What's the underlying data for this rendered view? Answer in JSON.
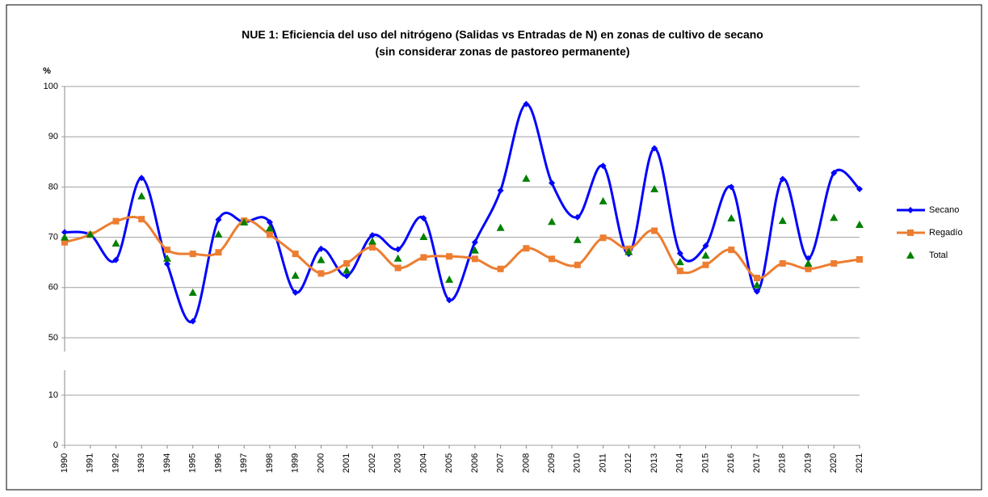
{
  "chart_data": {
    "type": "line",
    "title": "NUE 1: Eficiencia del uso del nitrógeno (Salidas vs Entradas de N) en zonas de cultivo de secano",
    "subtitle": "(sin considerar zonas de pastoreo permanente)",
    "y_label": "%",
    "categories": [
      "1990",
      "1991",
      "1992",
      "1993",
      "1994",
      "1995",
      "1996",
      "1997",
      "1998",
      "1999",
      "2000",
      "2001",
      "2002",
      "2003",
      "2004",
      "2005",
      "2006",
      "2007",
      "2008",
      "2009",
      "2010",
      "2011",
      "2012",
      "2013",
      "2014",
      "2015",
      "2016",
      "2017",
      "2018",
      "2019",
      "2020",
      "2021"
    ],
    "series": [
      {
        "name": "Secano",
        "color": "#0000ff",
        "marker": "diamond",
        "line": true,
        "values": [
          71,
          70.5,
          65.5,
          81.8,
          64.7,
          53.3,
          73.5,
          73,
          73,
          59,
          67.7,
          62.3,
          70.4,
          67.6,
          73.8,
          57.5,
          69,
          79.3,
          96.5,
          80.8,
          74,
          84.2,
          66.7,
          87.7,
          66.8,
          68.3,
          80,
          59.2,
          81.6,
          65.8,
          82.8,
          79.6
        ]
      },
      {
        "name": "Regadío",
        "color": "#ed7d31",
        "marker": "square",
        "line": true,
        "values": [
          69,
          70.5,
          73.2,
          73.6,
          67.5,
          66.7,
          67,
          73.3,
          70.5,
          66.7,
          62.8,
          64.8,
          68,
          63.9,
          66,
          66.2,
          65.7,
          63.7,
          67.8,
          65.7,
          64.5,
          69.9,
          67.7,
          71.3,
          63.3,
          64.5,
          67.5,
          61.9,
          64.8,
          63.7,
          64.8,
          65.6
        ]
      },
      {
        "name": "Total",
        "color": "#008000",
        "marker": "triangle",
        "line": false,
        "values": [
          70,
          70.6,
          68.8,
          78.2,
          65.8,
          59,
          70.6,
          73,
          71.8,
          62.4,
          65.5,
          63.4,
          69.2,
          65.8,
          70.1,
          61.6,
          67.4,
          71.9,
          81.7,
          73.1,
          69.5,
          77.2,
          67.1,
          79.6,
          65.1,
          66.4,
          73.8,
          60.5,
          73.3,
          64.8,
          73.9,
          72.5
        ]
      }
    ],
    "ylim": [
      0,
      100
    ],
    "yticks": [
      0,
      10,
      50,
      60,
      70,
      80,
      90,
      100
    ],
    "axis_break": [
      10,
      50
    ],
    "grid": true,
    "legend": "right"
  }
}
